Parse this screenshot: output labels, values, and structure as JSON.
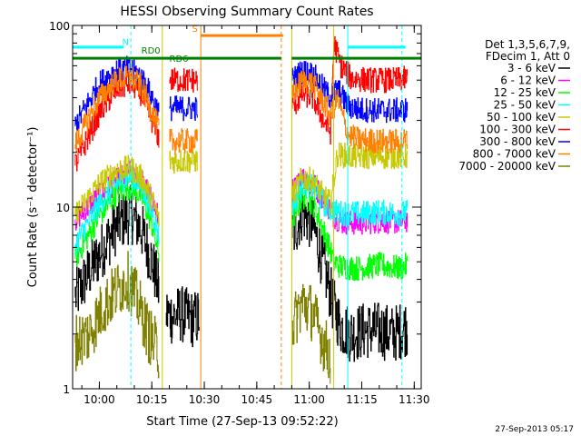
{
  "chart_data": {
    "type": "line",
    "title": "HESSI Observing Summary Count Rates",
    "xlabel": "Start Time (27-Sep-13 09:52:22)",
    "ylabel": "Count Rate (s⁻¹ detector⁻¹)",
    "yscale": "log",
    "ylim": [
      1,
      100
    ],
    "xlim": [
      "09:52:22",
      "11:32:00"
    ],
    "x_ticks": [
      "10:00",
      "10:15",
      "10:30",
      "10:45",
      "11:00",
      "11:15",
      "11:30"
    ],
    "y_ticks": [
      "1",
      "10",
      "100"
    ],
    "legend_header": [
      "Det 1,3,5,6,7,9,",
      "FDecim 1, Att 0"
    ],
    "legend_placement": "right",
    "footer_timestamp": "27-Sep-2013 05:17",
    "annotations": [
      {
        "label": "N",
        "x": "10:06:30",
        "y": 78,
        "color": "#00ffff"
      },
      {
        "label": "S",
        "x": "10:26:30",
        "y": 92,
        "color": "#ff8000"
      },
      {
        "label": "RD0",
        "x": "10:12:00",
        "y": 70,
        "color": "#008000"
      },
      {
        "label": "RD6",
        "x": "10:20:00",
        "y": 63,
        "color": "#008000"
      }
    ],
    "flag_bars": [
      {
        "name": "N",
        "color": "#00ffff",
        "segments": [
          [
            "09:52:22",
            "10:07:00"
          ],
          [
            "11:11:00",
            "11:27:30"
          ]
        ],
        "y": 76
      },
      {
        "name": "S",
        "color": "#ff8000",
        "segments": [
          [
            "10:29:00",
            "10:52:30"
          ]
        ],
        "y": 88
      },
      {
        "name": "RD",
        "color": "#008000",
        "segments": [
          [
            "09:52:22",
            "10:52:00"
          ],
          [
            "10:55:00",
            "11:32:00"
          ]
        ],
        "y": 66
      }
    ],
    "vertical_markers": [
      {
        "x": "10:09:00",
        "color": "#00ffff",
        "style": "dashed"
      },
      {
        "x": "10:18:00",
        "color": "#c8c800",
        "style": "solid"
      },
      {
        "x": "10:29:00",
        "color": "#ff8000",
        "style": "solid"
      },
      {
        "x": "10:52:00",
        "color": "#ff8000",
        "style": "dashed"
      },
      {
        "x": "10:55:00",
        "color": "#c8c800",
        "style": "solid"
      },
      {
        "x": "11:07:00",
        "color": "#c8c800",
        "style": "solid"
      },
      {
        "x": "11:11:00",
        "color": "#00ffff",
        "style": "solid"
      },
      {
        "x": "11:26:30",
        "color": "#00ffff",
        "style": "dashed"
      }
    ],
    "gaps": [
      [
        "10:29:00",
        "10:55:00"
      ]
    ],
    "series": [
      {
        "name": "3 - 6 keV",
        "color": "#000000",
        "points": [
          [
            "09:53",
            3.2
          ],
          [
            "10:00",
            5.5
          ],
          [
            "10:05",
            8.0
          ],
          [
            "10:09",
            9.2
          ],
          [
            "10:12",
            7.5
          ],
          [
            "10:15",
            5.0
          ],
          [
            "10:17",
            3.5
          ],
          [
            "10:17:30",
            null
          ],
          [
            "10:19",
            2.6
          ],
          [
            "10:21",
            2.5
          ],
          [
            "10:23",
            2.6
          ],
          [
            "10:25",
            2.5
          ],
          [
            "10:27",
            2.4
          ],
          [
            "10:28:30",
            2.5
          ],
          [
            "10:29",
            null
          ],
          [
            "10:55",
            6.8
          ],
          [
            "10:58",
            9.5
          ],
          [
            "11:01",
            8.0
          ],
          [
            "11:04",
            4.8
          ],
          [
            "11:07",
            2.8
          ],
          [
            "11:09",
            2.2
          ],
          [
            "11:12",
            2.0
          ],
          [
            "11:16",
            2.1
          ],
          [
            "11:20",
            2.1
          ],
          [
            "11:24",
            2.0
          ],
          [
            "11:28",
            2.2
          ]
        ]
      },
      {
        "name": "6 - 12 keV",
        "color": "#ff00ff",
        "points": [
          [
            "09:53",
            8.5
          ],
          [
            "10:00",
            11.5
          ],
          [
            "10:05",
            14.0
          ],
          [
            "10:09",
            15.5
          ],
          [
            "10:12",
            14.0
          ],
          [
            "10:15",
            11.0
          ],
          [
            "10:17",
            8.5
          ],
          [
            "10:17:30",
            null
          ],
          [
            "10:55",
            12.0
          ],
          [
            "10:58",
            14.5
          ],
          [
            "11:01",
            13.5
          ],
          [
            "11:04",
            11.0
          ],
          [
            "11:07",
            9.0
          ],
          [
            "11:09",
            8.3
          ],
          [
            "11:14",
            8.2
          ],
          [
            "11:20",
            8.4
          ],
          [
            "11:26",
            8.3
          ],
          [
            "11:28",
            8.5
          ]
        ]
      },
      {
        "name": "12 - 25 keV",
        "color": "#00ff00",
        "points": [
          [
            "09:53",
            5.2
          ],
          [
            "10:00",
            9.0
          ],
          [
            "10:05",
            12.0
          ],
          [
            "10:09",
            13.0
          ],
          [
            "10:12",
            11.5
          ],
          [
            "10:15",
            8.0
          ],
          [
            "10:17",
            5.5
          ],
          [
            "10:17:30",
            null
          ],
          [
            "10:55",
            8.5
          ],
          [
            "10:58",
            11.5
          ],
          [
            "11:01",
            10.5
          ],
          [
            "11:04",
            7.5
          ],
          [
            "11:07",
            5.0
          ],
          [
            "11:09",
            4.7
          ],
          [
            "11:14",
            4.6
          ],
          [
            "11:20",
            4.8
          ],
          [
            "11:26",
            4.6
          ],
          [
            "11:28",
            4.8
          ]
        ]
      },
      {
        "name": "25 - 50 keV",
        "color": "#00ffff",
        "points": [
          [
            "09:53",
            6.2
          ],
          [
            "10:00",
            10.5
          ],
          [
            "10:05",
            13.5
          ],
          [
            "10:09",
            15.0
          ],
          [
            "10:12",
            13.0
          ],
          [
            "10:15",
            9.5
          ],
          [
            "10:17",
            7.0
          ],
          [
            "10:17:30",
            null
          ],
          [
            "10:55",
            10.0
          ],
          [
            "10:58",
            13.5
          ],
          [
            "11:01",
            13.0
          ],
          [
            "11:04",
            10.5
          ],
          [
            "11:07",
            9.5
          ],
          [
            "11:09",
            9.3
          ],
          [
            "11:14",
            9.2
          ],
          [
            "11:20",
            9.4
          ],
          [
            "11:26",
            9.2
          ],
          [
            "11:28",
            9.4
          ]
        ]
      },
      {
        "name": "50 - 100 keV",
        "color": "#c8c800",
        "points": [
          [
            "09:53",
            9.0
          ],
          [
            "10:00",
            13.5
          ],
          [
            "10:05",
            16.0
          ],
          [
            "10:09",
            16.5
          ],
          [
            "10:12",
            14.5
          ],
          [
            "10:15",
            11.0
          ],
          [
            "10:17",
            8.5
          ],
          [
            "10:17:30",
            null
          ],
          [
            "10:20",
            18.0
          ],
          [
            "10:24",
            18.0
          ],
          [
            "10:28",
            18.0
          ],
          [
            "10:29",
            null
          ],
          [
            "10:55",
            11.5
          ],
          [
            "10:58",
            14.5
          ],
          [
            "11:01",
            14.0
          ],
          [
            "11:04",
            11.5
          ],
          [
            "11:06",
            10.5
          ],
          [
            "11:08",
            19.5
          ],
          [
            "11:12",
            19.0
          ],
          [
            "11:18",
            19.0
          ],
          [
            "11:24",
            19.0
          ],
          [
            "11:28",
            19.0
          ]
        ]
      },
      {
        "name": "100 - 300 keV",
        "color": "#ff0000",
        "points": [
          [
            "09:53",
            17.0
          ],
          [
            "10:00",
            33.0
          ],
          [
            "10:05",
            45.0
          ],
          [
            "10:09",
            48.0
          ],
          [
            "10:12",
            42.0
          ],
          [
            "10:15",
            30.0
          ],
          [
            "10:17",
            24.0
          ],
          [
            "10:17:30",
            null
          ],
          [
            "10:20",
            50.0
          ],
          [
            "10:24",
            50.0
          ],
          [
            "10:28",
            50.0
          ],
          [
            "10:29",
            null
          ],
          [
            "10:55",
            35.0
          ],
          [
            "10:58",
            42.0
          ],
          [
            "11:01",
            40.0
          ],
          [
            "11:04",
            30.0
          ],
          [
            "11:06",
            26.0
          ],
          [
            "11:07",
            80.0
          ],
          [
            "11:09",
            60.0
          ],
          [
            "11:12",
            51.0
          ],
          [
            "11:18",
            50.0
          ],
          [
            "11:24",
            50.0
          ],
          [
            "11:28",
            51.0
          ]
        ]
      },
      {
        "name": "300 - 800 keV",
        "color": "#0000ff",
        "points": [
          [
            "09:53",
            28.0
          ],
          [
            "10:00",
            48.0
          ],
          [
            "10:05",
            57.0
          ],
          [
            "10:09",
            58.0
          ],
          [
            "10:12",
            52.0
          ],
          [
            "10:15",
            40.0
          ],
          [
            "10:17",
            33.0
          ],
          [
            "10:17:30",
            null
          ],
          [
            "10:20",
            35.0
          ],
          [
            "10:24",
            35.0
          ],
          [
            "10:28",
            35.0
          ],
          [
            "10:29",
            null
          ],
          [
            "10:55",
            50.0
          ],
          [
            "10:58",
            56.0
          ],
          [
            "11:01",
            54.0
          ],
          [
            "11:04",
            45.0
          ],
          [
            "11:06",
            40.0
          ],
          [
            "11:08",
            45.0
          ],
          [
            "11:11",
            36.0
          ],
          [
            "11:14",
            34.5
          ],
          [
            "11:20",
            34.0
          ],
          [
            "11:26",
            34.0
          ],
          [
            "11:28",
            34.5
          ]
        ]
      },
      {
        "name": "800 - 7000 keV",
        "color": "#ff8000",
        "points": [
          [
            "09:53",
            22.0
          ],
          [
            "10:00",
            40.0
          ],
          [
            "10:05",
            50.0
          ],
          [
            "10:09",
            52.0
          ],
          [
            "10:12",
            46.0
          ],
          [
            "10:15",
            33.0
          ],
          [
            "10:17",
            27.0
          ],
          [
            "10:17:30",
            null
          ],
          [
            "10:20",
            23.0
          ],
          [
            "10:24",
            23.0
          ],
          [
            "10:28",
            23.0
          ],
          [
            "10:29",
            null
          ],
          [
            "10:55",
            42.0
          ],
          [
            "10:58",
            50.0
          ],
          [
            "11:01",
            48.0
          ],
          [
            "11:04",
            38.0
          ],
          [
            "11:06",
            32.0
          ],
          [
            "11:08",
            40.0
          ],
          [
            "11:11",
            25.0
          ],
          [
            "11:14",
            23.5
          ],
          [
            "11:20",
            23.0
          ],
          [
            "11:26",
            23.0
          ],
          [
            "11:28",
            23.5
          ]
        ]
      },
      {
        "name": "7000 - 20000 keV",
        "color": "#808000",
        "points": [
          [
            "09:53",
            1.8
          ],
          [
            "09:57",
            2.0
          ],
          [
            "10:01",
            2.8
          ],
          [
            "10:05",
            3.5
          ],
          [
            "10:08",
            4.0
          ],
          [
            "10:11",
            3.0
          ],
          [
            "10:14",
            2.0
          ],
          [
            "10:17",
            1.6
          ],
          [
            "10:17:30",
            null
          ],
          [
            "10:55",
            2.2
          ],
          [
            "10:58",
            3.0
          ],
          [
            "11:01",
            2.6
          ],
          [
            "11:04",
            1.8
          ],
          [
            "11:06",
            1.5
          ],
          [
            "11:07",
            null
          ]
        ]
      }
    ]
  }
}
